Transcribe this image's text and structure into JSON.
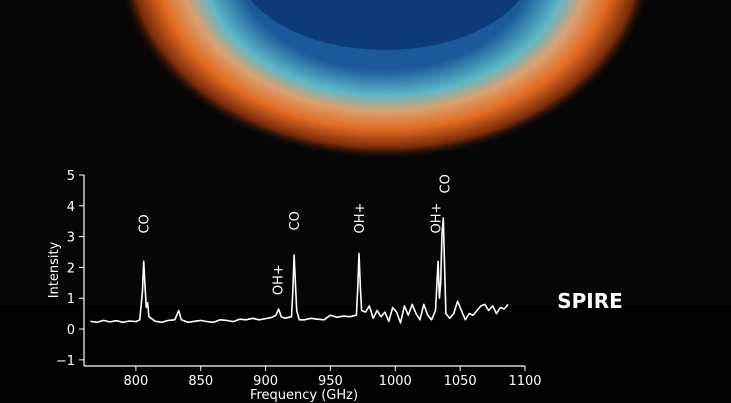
{
  "chart_data": {
    "type": "line",
    "x_label": "Frequency (GHz)",
    "y_label": "Intensity",
    "label": "SPIRE",
    "color": "#ffffff",
    "xlim": [
      760,
      1100
    ],
    "xticks": [
      800,
      850,
      900,
      950,
      1000,
      1050,
      1100
    ],
    "ylim": [
      -1.2,
      5
    ],
    "yticks": [
      {
        "value": -1,
        "label": "−1"
      },
      0,
      1,
      2,
      3,
      4,
      5
    ],
    "x": [
      765,
      770,
      775,
      780,
      785,
      790,
      795,
      800,
      803,
      805,
      806,
      807,
      808,
      809,
      810,
      815,
      820,
      825,
      830,
      833,
      835,
      840,
      845,
      850,
      855,
      860,
      865,
      870,
      875,
      880,
      885,
      890,
      895,
      900,
      905,
      908,
      910,
      912,
      915,
      920,
      921,
      922,
      923,
      924,
      926,
      930,
      935,
      940,
      945,
      950,
      955,
      960,
      965,
      970,
      971,
      972,
      973,
      974,
      977,
      980,
      983,
      986,
      989,
      992,
      995,
      998,
      1001,
      1004,
      1007,
      1010,
      1013,
      1016,
      1019,
      1022,
      1025,
      1028,
      1031,
      1032,
      1033,
      1034,
      1035,
      1036,
      1037,
      1038,
      1039,
      1042,
      1045,
      1048,
      1051,
      1054,
      1057,
      1060,
      1063,
      1066,
      1069,
      1072,
      1075,
      1078,
      1081,
      1084,
      1087
    ],
    "values": [
      0.25,
      0.22,
      0.28,
      0.23,
      0.27,
      0.22,
      0.26,
      0.24,
      0.3,
      1.2,
      2.2,
      1.4,
      0.7,
      0.85,
      0.4,
      0.25,
      0.22,
      0.28,
      0.3,
      0.6,
      0.3,
      0.22,
      0.25,
      0.28,
      0.24,
      0.22,
      0.3,
      0.28,
      0.24,
      0.32,
      0.3,
      0.35,
      0.3,
      0.34,
      0.38,
      0.45,
      0.65,
      0.4,
      0.35,
      0.4,
      1.2,
      2.4,
      1.5,
      0.6,
      0.3,
      0.3,
      0.35,
      0.32,
      0.3,
      0.45,
      0.38,
      0.42,
      0.4,
      0.45,
      1.3,
      2.45,
      1.4,
      0.6,
      0.55,
      0.75,
      0.35,
      0.6,
      0.4,
      0.55,
      0.25,
      0.7,
      0.55,
      0.2,
      0.75,
      0.45,
      0.8,
      0.5,
      0.3,
      0.8,
      0.45,
      0.3,
      0.6,
      1.4,
      2.2,
      1.0,
      1.5,
      3.1,
      3.6,
      2.0,
      0.5,
      0.35,
      0.5,
      0.9,
      0.6,
      0.3,
      0.5,
      0.45,
      0.6,
      0.75,
      0.8,
      0.6,
      0.75,
      0.5,
      0.7,
      0.65,
      0.8
    ],
    "annotations": [
      {
        "text": "CO",
        "x": 806,
        "y": 3.1
      },
      {
        "text": "OH+",
        "x": 909,
        "y": 1.1
      },
      {
        "text": "CO",
        "x": 922,
        "y": 3.2
      },
      {
        "text": "OH+",
        "x": 972,
        "y": 3.1
      },
      {
        "text": "OH+",
        "x": 1031,
        "y": 3.1
      },
      {
        "text": "CO",
        "x": 1038,
        "y": 4.4
      }
    ]
  }
}
